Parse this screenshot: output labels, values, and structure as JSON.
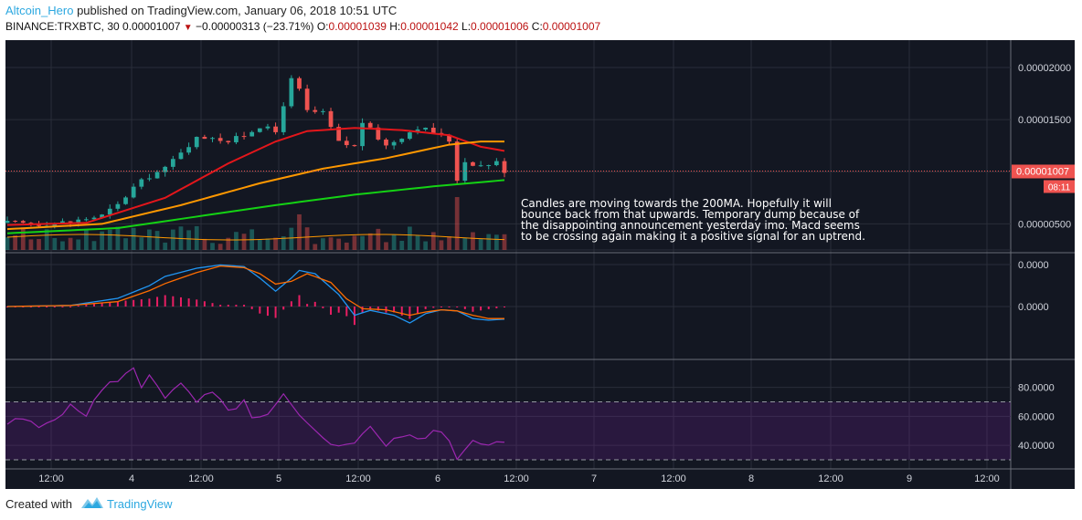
{
  "header": {
    "author": "Altcoin_Hero",
    "published": "published on TradingView.com, January 06, 2018 10:51 UTC",
    "symbol": "BINANCE:TRXBTC, 30",
    "last": "0.00001007",
    "change_arrow": "▼",
    "change": "−0.00000313 (−23.71%)",
    "o_label": "O:",
    "o_value": "0.00001039",
    "h_label": "H:",
    "h_value": "0.00001042",
    "l_label": "L:",
    "l_value": "0.00001006",
    "c_label": "C:",
    "c_value": "0.00001007"
  },
  "footer": {
    "created": "Created with",
    "brand": "TradingView",
    "logo_icon": "tradingview-logo-icon"
  },
  "annotation": [
    "Candles are moving towards the 200MA. Hopefully it will",
    "bounce back from that upwards. Temporary dump because of",
    "the disappointing announcement yesterday imo. Macd seems",
    "to be crossing again making it a positive signal for an uptrend."
  ],
  "price_label": "0.00001007",
  "countdown_label": "08:11",
  "colors": {
    "background": "#131722",
    "up": "#26a69a",
    "down": "#ef5350",
    "ma_red": "#e4161b",
    "ma_orange": "#ff9800",
    "ma_green": "#14d214",
    "macd": "#2196f3",
    "signal": "#ff6d00",
    "histogram": "#e91e63",
    "rsi": "#9c27b0"
  },
  "chart_data": {
    "type": "candlestick",
    "price_axis": {
      "ticks": [
        "0.00002000",
        "0.00001500",
        "0.00000500"
      ],
      "ylim": [
        2.5e-06,
        2.21e-05
      ]
    },
    "time_axis": {
      "ticks": [
        "12:00",
        "4",
        "12:00",
        "5",
        "12:00",
        "6",
        "12:00",
        "7",
        "12:00",
        "8",
        "12:00",
        "9",
        "12:00"
      ]
    },
    "close_path": [
      [
        0,
        5.1
      ],
      [
        4,
        5.0
      ],
      [
        8,
        5.2
      ],
      [
        12,
        5.8
      ],
      [
        14,
        6.8
      ],
      [
        16,
        8.5
      ],
      [
        18,
        9.6
      ],
      [
        20,
        10.3
      ],
      [
        22,
        12.0
      ],
      [
        24,
        13.2
      ],
      [
        26,
        13.4
      ],
      [
        28,
        12.9
      ],
      [
        30,
        13.5
      ],
      [
        32,
        14.4
      ],
      [
        34,
        13.8
      ],
      [
        35,
        16.5
      ],
      [
        36,
        18.8
      ],
      [
        37,
        17.8
      ],
      [
        38,
        15.8
      ],
      [
        40,
        15.6
      ],
      [
        41,
        14.2
      ],
      [
        42,
        12.8
      ],
      [
        44,
        12.4
      ],
      [
        45,
        14.8
      ],
      [
        46,
        14.0
      ],
      [
        48,
        12.5
      ],
      [
        50,
        13.4
      ],
      [
        52,
        14.3
      ],
      [
        54,
        13.8
      ],
      [
        56,
        13.0
      ],
      [
        57,
        9.3
      ],
      [
        58,
        11.0
      ],
      [
        60,
        10.6
      ],
      [
        62,
        10.9
      ],
      [
        63,
        10.1
      ]
    ],
    "candle_count": 64,
    "series": [
      {
        "name": "MA red",
        "values": [
          [
            0,
            4.9
          ],
          [
            10,
            5.1
          ],
          [
            20,
            7.5
          ],
          [
            28,
            10.8
          ],
          [
            34,
            12.9
          ],
          [
            38,
            13.9
          ],
          [
            44,
            14.2
          ],
          [
            50,
            14.0
          ],
          [
            56,
            13.5
          ],
          [
            60,
            12.4
          ],
          [
            63,
            12.0
          ]
        ]
      },
      {
        "name": "MA orange",
        "values": [
          [
            0,
            4.5
          ],
          [
            12,
            5.0
          ],
          [
            22,
            6.8
          ],
          [
            32,
            8.9
          ],
          [
            40,
            10.3
          ],
          [
            48,
            11.3
          ],
          [
            56,
            12.6
          ],
          [
            60,
            12.9
          ],
          [
            63,
            12.9
          ]
        ]
      },
      {
        "name": "200MA",
        "values": [
          [
            0,
            4.1
          ],
          [
            14,
            4.6
          ],
          [
            24,
            5.7
          ],
          [
            34,
            6.8
          ],
          [
            44,
            7.8
          ],
          [
            54,
            8.6
          ],
          [
            63,
            9.2
          ]
        ]
      }
    ],
    "macd_axis": {
      "ticks": [
        "0.0000",
        "0.0000"
      ]
    },
    "macd": [
      [
        0,
        0
      ],
      [
        8,
        0.2
      ],
      [
        14,
        1.5
      ],
      [
        18,
        3.8
      ],
      [
        20,
        5.5
      ],
      [
        24,
        7.0
      ],
      [
        27,
        7.6
      ],
      [
        30,
        7.3
      ],
      [
        32,
        5.2
      ],
      [
        34,
        2.8
      ],
      [
        36,
        5.2
      ],
      [
        37,
        6.6
      ],
      [
        39,
        6.0
      ],
      [
        42,
        2.2
      ],
      [
        44,
        -1.6
      ],
      [
        46,
        -0.7
      ],
      [
        49,
        -1.6
      ],
      [
        51,
        -3.0
      ],
      [
        53,
        -1.3
      ],
      [
        55,
        -0.6
      ],
      [
        57,
        -0.8
      ],
      [
        59,
        -2.2
      ],
      [
        61,
        -2.5
      ],
      [
        63,
        -2.3
      ]
    ],
    "signal": [
      [
        0,
        0
      ],
      [
        8,
        0.2
      ],
      [
        14,
        0.9
      ],
      [
        18,
        2.9
      ],
      [
        20,
        4.2
      ],
      [
        24,
        6.2
      ],
      [
        27,
        7.4
      ],
      [
        30,
        7.1
      ],
      [
        32,
        6.0
      ],
      [
        34,
        4.1
      ],
      [
        36,
        4.6
      ],
      [
        38,
        6.0
      ],
      [
        41,
        4.4
      ],
      [
        43,
        1.4
      ],
      [
        45,
        -0.4
      ],
      [
        48,
        -0.6
      ],
      [
        51,
        -1.6
      ],
      [
        53,
        -1.0
      ],
      [
        55,
        -0.6
      ],
      [
        57,
        -0.8
      ],
      [
        59,
        -1.6
      ],
      [
        61,
        -2.2
      ],
      [
        63,
        -2.2
      ]
    ],
    "rsi_axis": {
      "ticks": [
        "80.0000",
        "60.0000",
        "40.0000"
      ],
      "ylim": [
        25,
        98
      ],
      "bands": [
        30,
        70
      ]
    },
    "rsi": [
      [
        0,
        55
      ],
      [
        2,
        58
      ],
      [
        4,
        52
      ],
      [
        6,
        60
      ],
      [
        8,
        66
      ],
      [
        10,
        62
      ],
      [
        12,
        78
      ],
      [
        14,
        86
      ],
      [
        16,
        92
      ],
      [
        17,
        80
      ],
      [
        18,
        90
      ],
      [
        20,
        74
      ],
      [
        22,
        81
      ],
      [
        24,
        70
      ],
      [
        26,
        76
      ],
      [
        28,
        63
      ],
      [
        30,
        71
      ],
      [
        31,
        57
      ],
      [
        33,
        60
      ],
      [
        35,
        74
      ],
      [
        36,
        66
      ],
      [
        38,
        54
      ],
      [
        40,
        47
      ],
      [
        42,
        38
      ],
      [
        44,
        43
      ],
      [
        46,
        54
      ],
      [
        48,
        39
      ],
      [
        50,
        47
      ],
      [
        52,
        44
      ],
      [
        54,
        50
      ],
      [
        56,
        44
      ],
      [
        57,
        32
      ],
      [
        59,
        44
      ],
      [
        61,
        42
      ],
      [
        63,
        41
      ]
    ]
  }
}
